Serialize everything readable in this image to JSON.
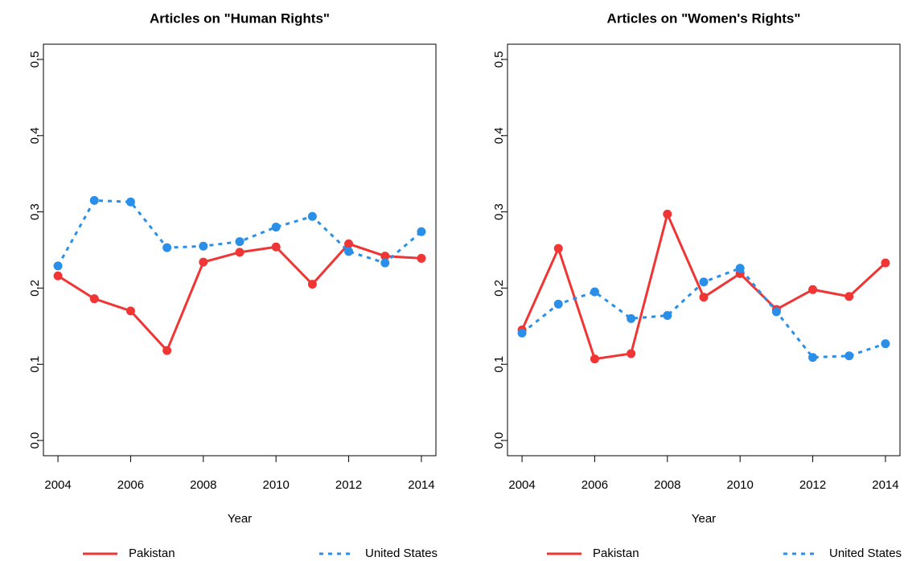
{
  "chart_data": [
    {
      "type": "line",
      "title": "Articles on \"Human Rights\"",
      "x_label": "Year",
      "x": [
        2004,
        2005,
        2006,
        2007,
        2008,
        2009,
        2010,
        2011,
        2012,
        2013,
        2014
      ],
      "series": [
        {
          "name": "Pakistan",
          "color": "#f03535",
          "dash": "solid",
          "values": [
            0.216,
            0.186,
            0.17,
            0.118,
            0.234,
            0.247,
            0.254,
            0.205,
            0.258,
            0.242,
            0.239
          ]
        },
        {
          "name": "United States",
          "color": "#2a8fe8",
          "dash": "dotted",
          "values": [
            0.229,
            0.315,
            0.313,
            0.253,
            0.255,
            0.261,
            0.28,
            0.294,
            0.248,
            0.233,
            0.274
          ]
        }
      ],
      "xlim": [
        2003.6,
        2014.4
      ],
      "xticks": [
        2004,
        2006,
        2008,
        2010,
        2012,
        2014
      ],
      "ylim": [
        -0.02,
        0.52
      ],
      "yticks": [
        {
          "value": 0,
          "label": "0.0"
        },
        0.1,
        0.2,
        0.3,
        0.4,
        0.5
      ],
      "legend": "bottom"
    },
    {
      "type": "line",
      "title": "Articles on \"Women's Rights\"",
      "x_label": "Year",
      "x": [
        2004,
        2005,
        2006,
        2007,
        2008,
        2009,
        2010,
        2011,
        2012,
        2013,
        2014
      ],
      "series": [
        {
          "name": "Pakistan",
          "color": "#f03535",
          "dash": "solid",
          "values": [
            0.145,
            0.252,
            0.107,
            0.114,
            0.297,
            0.188,
            0.219,
            0.172,
            0.198,
            0.189,
            0.233
          ]
        },
        {
          "name": "United States",
          "color": "#2a8fe8",
          "dash": "dotted",
          "values": [
            0.141,
            0.179,
            0.195,
            0.16,
            0.164,
            0.208,
            0.226,
            0.169,
            0.109,
            0.111,
            0.127
          ]
        }
      ],
      "xlim": [
        2003.6,
        2014.4
      ],
      "xticks": [
        2004,
        2006,
        2008,
        2010,
        2012,
        2014
      ],
      "ylim": [
        -0.02,
        0.52
      ],
      "yticks": [
        {
          "value": 0,
          "label": "0.0"
        },
        0.1,
        0.2,
        0.3,
        0.4,
        0.5
      ],
      "legend": "bottom"
    }
  ]
}
